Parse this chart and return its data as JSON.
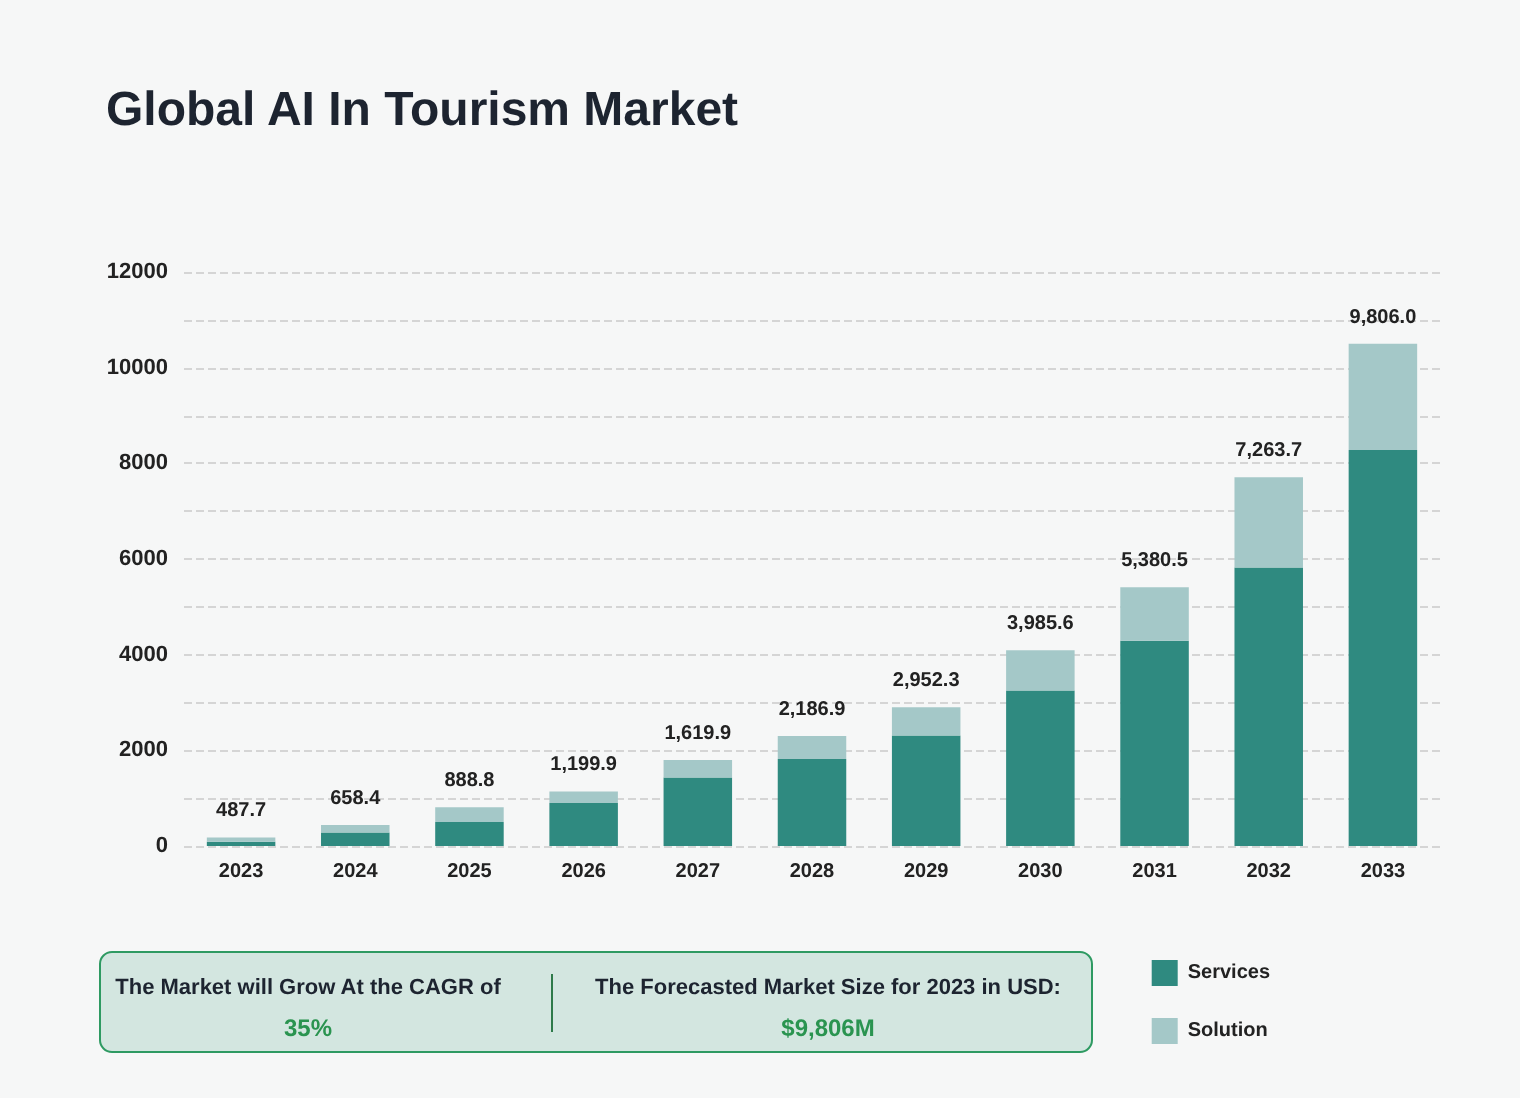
{
  "chart_data": {
    "type": "bar",
    "title": "Global AI In Tourism Market",
    "stacked": true,
    "categories": [
      "2023",
      "2024",
      "2025",
      "2026",
      "2027",
      "2028",
      "2029",
      "2030",
      "2031",
      "2032",
      "2033"
    ],
    "series": [
      {
        "name": "Services",
        "color": "#2f8a80",
        "values": [
          90,
          280,
          500,
          900,
          1430,
          1820,
          2310,
          3250,
          4290,
          5820,
          8280
        ]
      },
      {
        "name": "Solution",
        "color": "#a4c8c8",
        "values": [
          90,
          160,
          310,
          240,
          370,
          480,
          590,
          840,
          1120,
          1890,
          2220
        ]
      }
    ],
    "ylim": [
      0,
      12000
    ],
    "yticks": [
      0,
      {
        "value": 1000,
        "label": null
      },
      2000,
      {
        "value": 3000,
        "label": null
      },
      4000,
      {
        "value": 5000,
        "label": null
      },
      6000,
      {
        "value": 7000,
        "label": null
      },
      8000,
      {
        "value": 9000,
        "label": null
      },
      10000,
      {
        "value": 11000,
        "label": null
      },
      12000
    ],
    "grid": "y",
    "legend": "bottom right",
    "annotations": [
      "The Market will Grow At the CAGR of",
      "35%",
      "The Forecasted Market Size for 2023 in USD:",
      "$9,806M",
      {
        "text": "487.7",
        "x": "2023",
        "y": 180
      },
      {
        "text": "658.4",
        "x": "2024",
        "y": 440
      },
      {
        "text": "888.8",
        "x": "2025",
        "y": 810
      },
      {
        "text": "1,199.9",
        "x": "2026",
        "y": 1140
      },
      {
        "text": "1,619.9",
        "x": "2027",
        "y": 1800
      },
      {
        "text": "2,186.9",
        "x": "2028",
        "y": 2300
      },
      {
        "text": "2,952.3",
        "x": "2029",
        "y": 2900
      },
      {
        "text": "3,985.6",
        "x": "2030",
        "y": 4090
      },
      {
        "text": "5,380.5",
        "x": "2031",
        "y": 5410
      },
      {
        "text": "7,263.7",
        "x": "2032",
        "y": 7710
      },
      {
        "text": "9,806.0",
        "x": "2033",
        "y": 10500
      }
    ]
  }
}
